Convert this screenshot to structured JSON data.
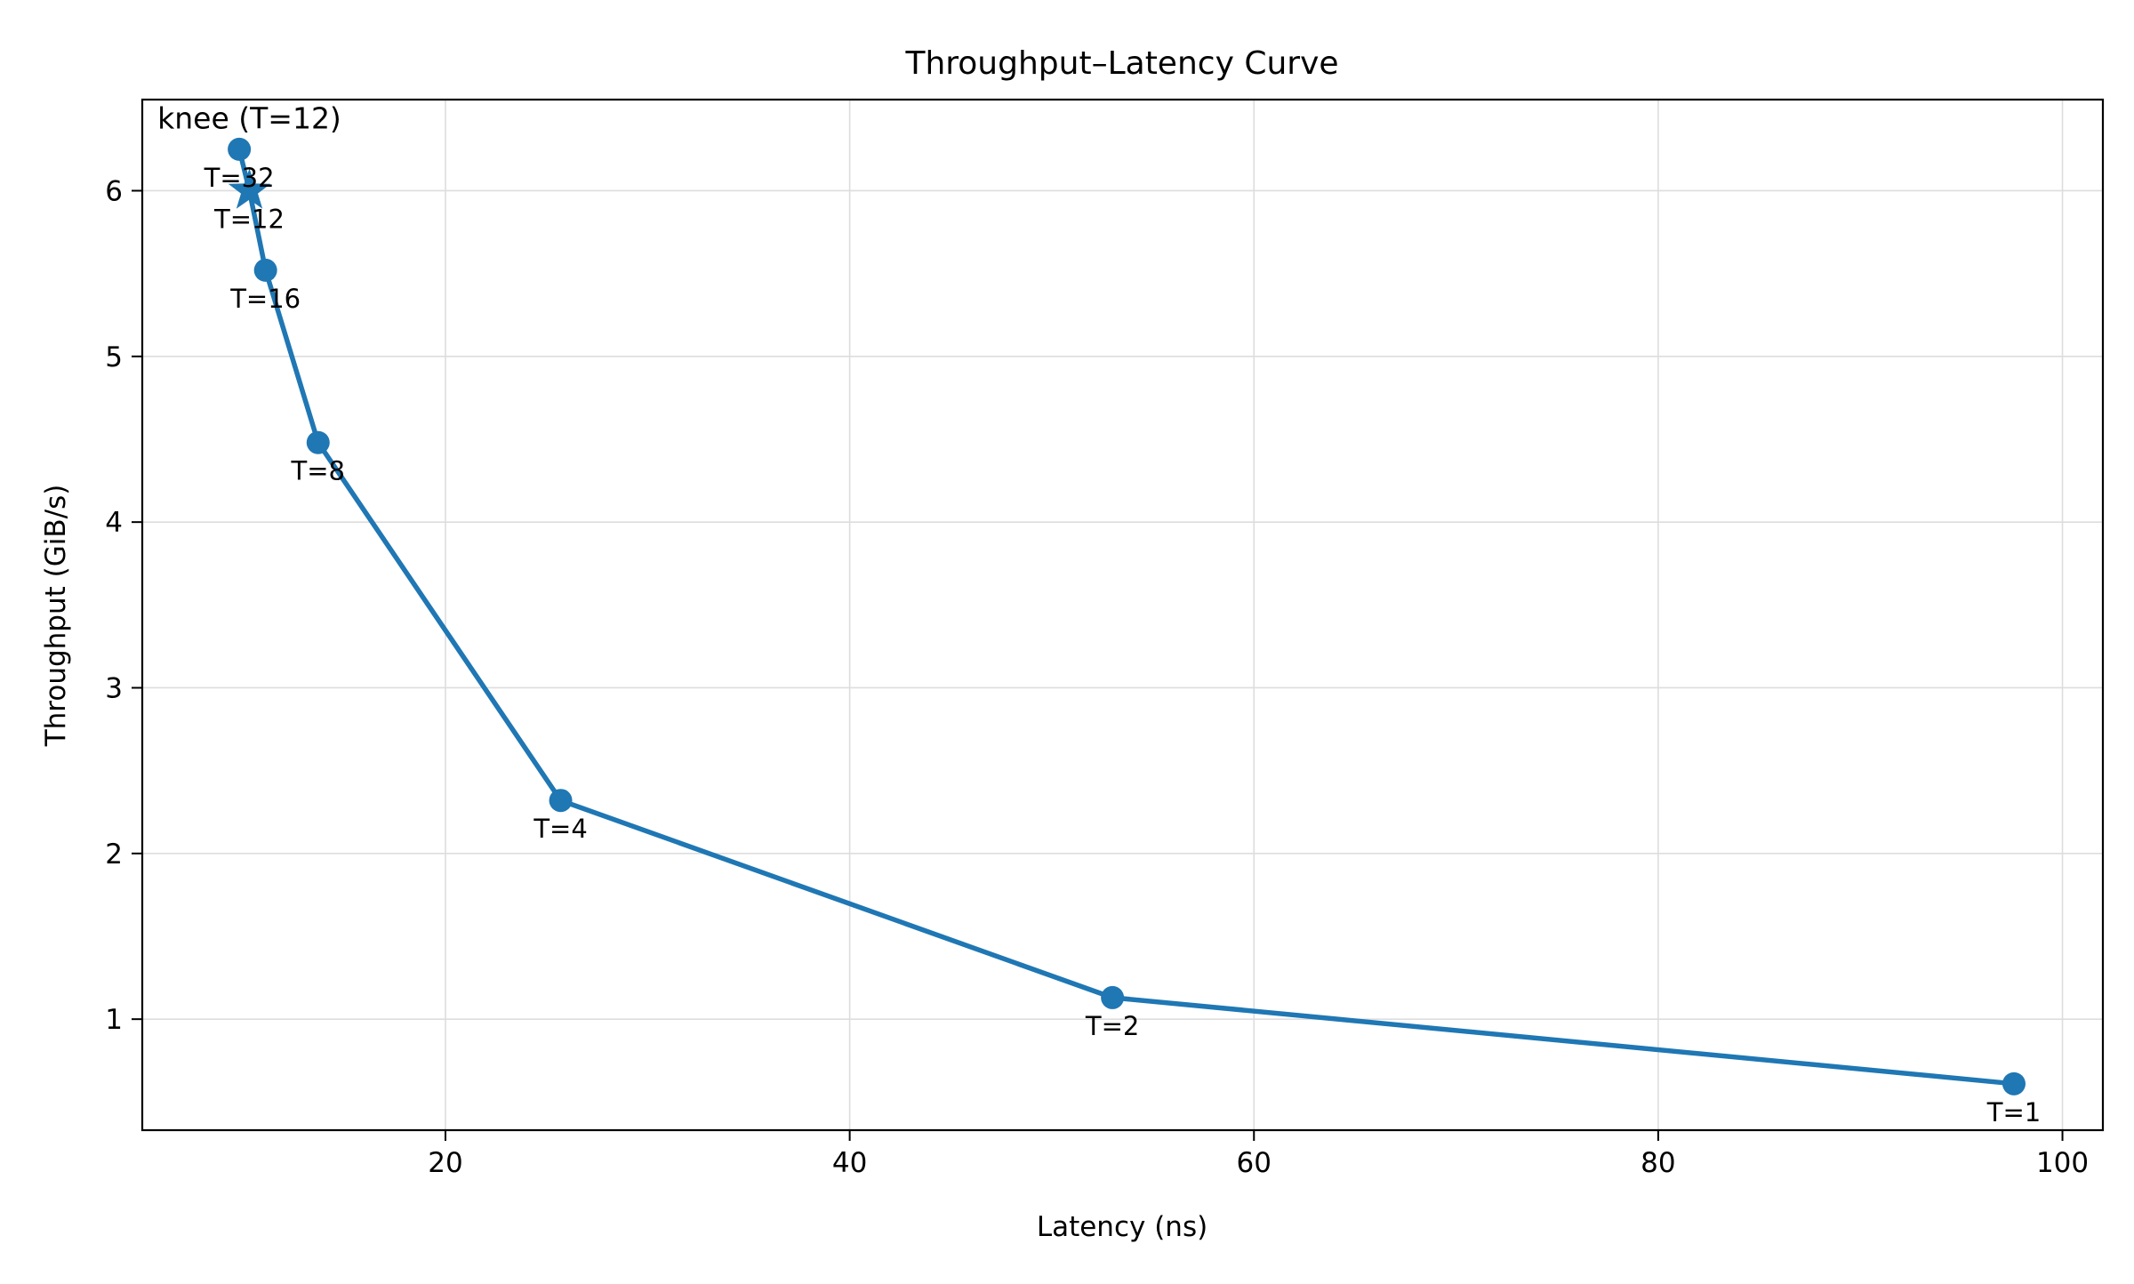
{
  "chart_data": {
    "type": "line",
    "title": "Throughput–Latency Curve",
    "xlabel": "Latency (ns)",
    "ylabel": "Throughput (GiB/s)",
    "xlim": [
      5,
      102
    ],
    "ylim": [
      0.33,
      6.55
    ],
    "xticks": [
      20,
      40,
      60,
      80,
      100
    ],
    "yticks": [
      1,
      2,
      3,
      4,
      5,
      6
    ],
    "grid": true,
    "legend": "none",
    "series": [
      {
        "color": "#1f77b4",
        "points": [
          {
            "label": "T=1",
            "x": 97.6,
            "y": 0.61
          },
          {
            "label": "T=2",
            "x": 53.0,
            "y": 1.13
          },
          {
            "label": "T=4",
            "x": 25.7,
            "y": 2.32
          },
          {
            "label": "T=8",
            "x": 13.7,
            "y": 4.48
          },
          {
            "label": "T=16",
            "x": 11.1,
            "y": 5.52
          },
          {
            "label": "T=12",
            "x": 10.3,
            "y": 6.0
          },
          {
            "label": "T=32",
            "x": 9.8,
            "y": 6.25
          }
        ]
      }
    ],
    "annotation": {
      "text": "knee (T=12)",
      "x": 10.3,
      "y": 6.0,
      "marker": "star"
    }
  }
}
